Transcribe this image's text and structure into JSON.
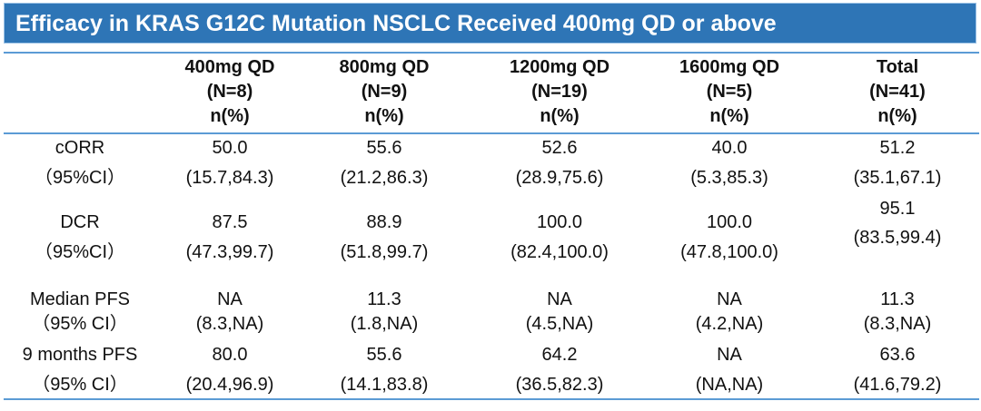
{
  "title": "Efficacy in KRAS G12C Mutation NSCLC Received 400mg QD or above",
  "colors": {
    "title_bar": "#2E75B6",
    "rule": "#5B9BD5"
  },
  "columns": [
    {
      "dose": "400mg QD",
      "n": "(N=8)",
      "unit": "n(%)"
    },
    {
      "dose": "800mg QD",
      "n": "(N=9)",
      "unit": "n(%)"
    },
    {
      "dose": "1200mg QD",
      "n": "(N=19)",
      "unit": "n(%)"
    },
    {
      "dose": "1600mg QD",
      "n": "(N=5)",
      "unit": "n(%)"
    },
    {
      "dose": "Total",
      "n": "(N=41)",
      "unit": "n(%)"
    }
  ],
  "rows": [
    {
      "label": "cORR",
      "sublabel": "（95%CI）",
      "values": [
        "50.0",
        "55.6",
        "52.6",
        "40.0",
        "51.2"
      ],
      "ci": [
        "(15.7,84.3)",
        "(21.2,86.3)",
        "(28.9,75.6)",
        "(5.3,85.3)",
        "(35.1,67.1)"
      ]
    },
    {
      "label": "DCR",
      "sublabel": "（95%CI）",
      "values": [
        "87.5",
        "88.9",
        "100.0",
        "100.0",
        "95.1"
      ],
      "ci": [
        "(47.3,99.7)",
        "(51.8,99.7)",
        "(82.4,100.0)",
        "(47.8,100.0)",
        "(83.5,99.4)"
      ]
    },
    {
      "label": "Median PFS",
      "sublabel": "（95% CI）",
      "values": [
        "NA",
        "11.3",
        "NA",
        "NA",
        "11.3"
      ],
      "ci": [
        "(8.3,NA)",
        "(1.8,NA)",
        "(4.5,NA)",
        "(4.2,NA)",
        "(8.3,NA)"
      ]
    },
    {
      "label": "9 months PFS",
      "sublabel": "（95% CI）",
      "values": [
        "80.0",
        "55.6",
        "64.2",
        "NA",
        "63.6"
      ],
      "ci": [
        "(20.4,96.9)",
        "(14.1,83.8)",
        "(36.5,82.3)",
        "(NA,NA)",
        "(41.6,79.2)"
      ]
    }
  ]
}
